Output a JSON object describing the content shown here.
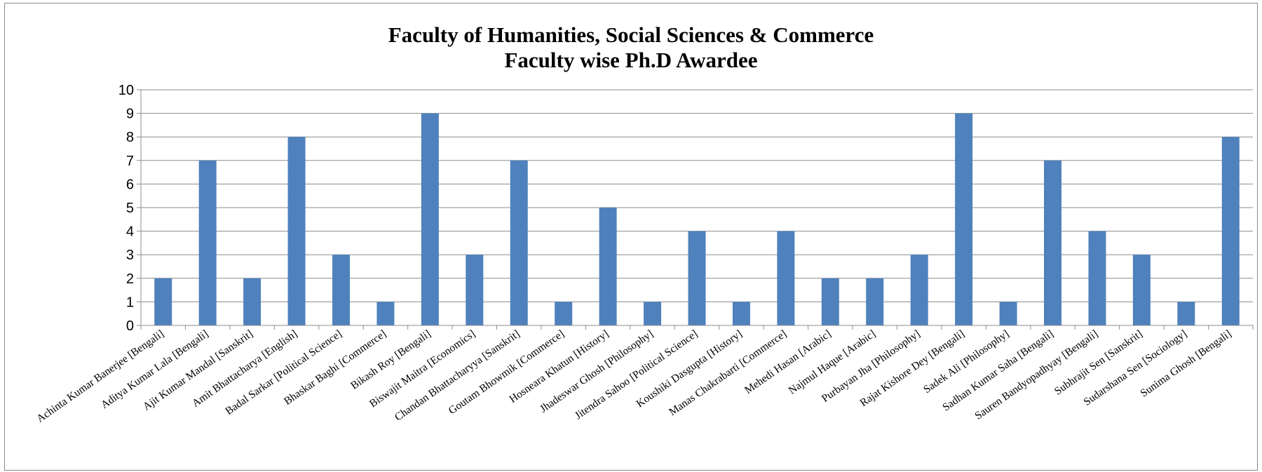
{
  "chart_data": {
    "type": "bar",
    "title": "Faculty of Humanities, Social Sciences & Commerce",
    "subtitle": "Faculty wise Ph.D Awardee",
    "xlabel": "",
    "ylabel": "",
    "ylim": [
      0,
      10
    ],
    "yticks": [
      "0",
      "1",
      "2",
      "3",
      "4",
      "5",
      "6",
      "7",
      "8",
      "9",
      "10"
    ],
    "grid": true,
    "legend": "none",
    "bar_color": "#4F81BD",
    "categories": [
      "Achinta Kumar Banerjee [Bengali]",
      "Aditya Kumar Lala [Bengali]",
      "Ajit Kumar Mandal [Sanskrit]",
      "Amit Bhattacharya [English]",
      "Badal Sarkar [Political Science]",
      "Bhaskar Baghi [Commerce]",
      "Bikash Roy [Bengali]",
      "Biswajit Maitra [Economics]",
      "Chandan Bhattacharyya [Sanskrit]",
      "Goutam Bhowmik [Commerce]",
      "Hosneara Khatun [History]",
      "Jhadeswar Ghosh [Philosophy]",
      "Jitendra Sahoo [Political Science]",
      "Koushiki Dasgupta [History]",
      "Manas Chakrabarti [Commerce]",
      "Mehedi Hasan [Arabic]",
      "Najmul Haque [Arabic]",
      "Purbayan Jha [Philosophy]",
      "Rajat Kishore Dey [Bengali]",
      "Sadek Ali [Philosophy]",
      "Sadhan Kumar Saha [Bengali]",
      "Sauren Bandyopadhyay [Bengali]",
      "Subhrajit Sen [Sanskrit]",
      "Sudarshana Sen [Sociology]",
      "Sunima Ghosh [Bengali]"
    ],
    "values": [
      2,
      7,
      2,
      8,
      3,
      1,
      9,
      3,
      7,
      1,
      5,
      1,
      4,
      1,
      4,
      2,
      2,
      3,
      9,
      1,
      7,
      4,
      3,
      1,
      8
    ]
  }
}
